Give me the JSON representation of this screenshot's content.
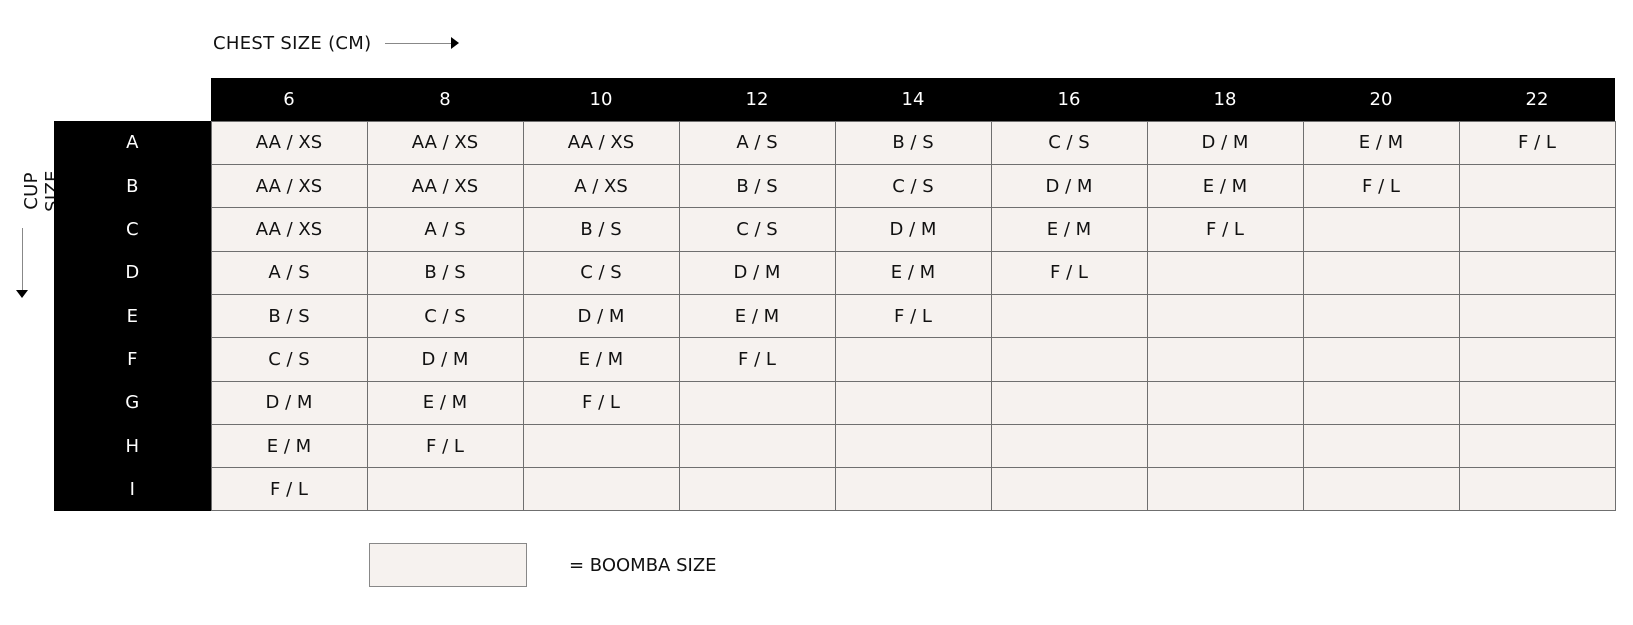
{
  "chest_label": "CHEST SIZE (CM)",
  "cup_label": "CUP SIZE",
  "columns": [
    "6",
    "8",
    "10",
    "12",
    "14",
    "16",
    "18",
    "20",
    "22"
  ],
  "rows": [
    {
      "cup": "A",
      "cells": [
        "AA / XS",
        "AA / XS",
        "AA / XS",
        "A / S",
        "B / S",
        "C / S",
        "D / M",
        "E / M",
        "F / L"
      ]
    },
    {
      "cup": "B",
      "cells": [
        "AA / XS",
        "AA / XS",
        "A / XS",
        "B / S",
        "C / S",
        "D / M",
        "E / M",
        "F / L",
        ""
      ]
    },
    {
      "cup": "C",
      "cells": [
        "AA / XS",
        "A / S",
        "B / S",
        "C / S",
        "D / M",
        "E / M",
        "F / L",
        "",
        ""
      ]
    },
    {
      "cup": "D",
      "cells": [
        "A / S",
        "B / S",
        "C / S",
        "D / M",
        "E / M",
        "F / L",
        "",
        "",
        ""
      ]
    },
    {
      "cup": "E",
      "cells": [
        "B / S",
        "C / S",
        "D / M",
        "E / M",
        "F / L",
        "",
        "",
        "",
        ""
      ]
    },
    {
      "cup": "F",
      "cells": [
        "C / S",
        "D / M",
        "E / M",
        "F / L",
        "",
        "",
        "",
        "",
        ""
      ]
    },
    {
      "cup": "G",
      "cells": [
        "D / M",
        "E / M",
        "F / L",
        "",
        "",
        "",
        "",
        "",
        ""
      ]
    },
    {
      "cup": "H",
      "cells": [
        "E / M",
        "F / L",
        "",
        "",
        "",
        "",
        "",
        "",
        ""
      ]
    },
    {
      "cup": "I",
      "cells": [
        "F / L",
        "",
        "",
        "",
        "",
        "",
        "",
        "",
        ""
      ]
    }
  ],
  "legend_text": "= BOOMBA SIZE",
  "colors": {
    "header_bg": "#000000",
    "cell_bg": "#f6f2ef",
    "border": "#6f6f6f"
  }
}
